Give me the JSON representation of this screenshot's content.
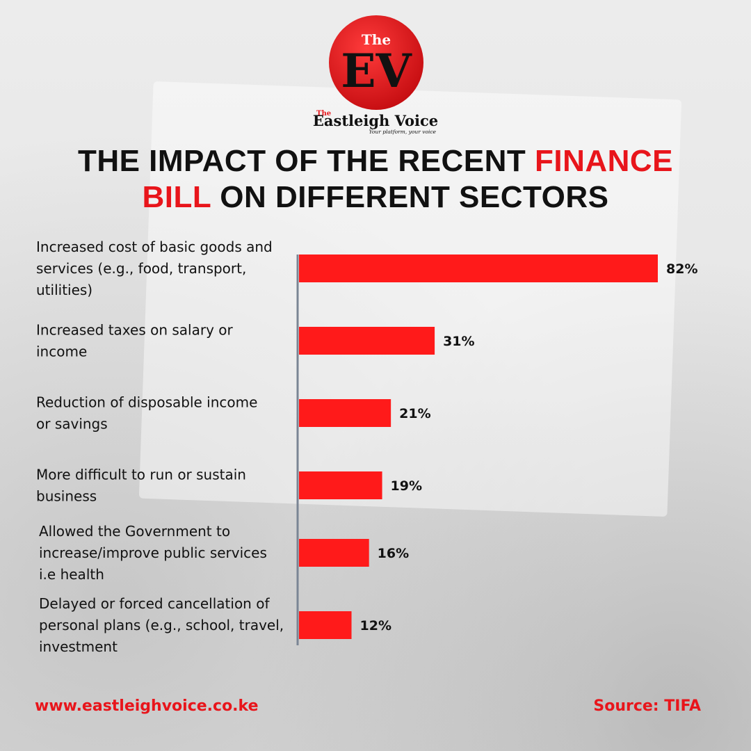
{
  "brand": {
    "logo_the": "The",
    "logo_mark": "EV",
    "wordmark_the": "The",
    "wordmark": "Eastleigh Voice",
    "tagline": "Your platform, your voice",
    "colors": {
      "red": "#e8151b",
      "dark": "#111111"
    }
  },
  "title": {
    "part1": "THE IMPACT OF THE RECENT ",
    "highlight1": "FINANCE",
    "highlight2": "BILL",
    "part2": " ON DIFFERENT SECTORS"
  },
  "chart_data": {
    "type": "bar",
    "orientation": "horizontal",
    "categories": [
      [
        "Increased cost of basic goods and",
        "services (e.g., food, transport,",
        "utilities)"
      ],
      [
        "Increased taxes on salary or",
        "income"
      ],
      [
        "Reduction of disposable income",
        "or savings"
      ],
      [
        "More difficult to run or sustain",
        "business"
      ],
      [
        "Allowed the Government to",
        "increase/improve public services",
        "i.e health"
      ],
      [
        "Delayed or forced cancellation of",
        "personal plans (e.g., school, travel,",
        "investment"
      ]
    ],
    "values": [
      82,
      31,
      21,
      19,
      16,
      12
    ],
    "value_labels": [
      "82%",
      "31%",
      "21%",
      "19%",
      "16%",
      "12%"
    ],
    "bar_color": "#ff1a1a",
    "xlim": [
      0,
      82
    ],
    "grid": false
  },
  "footer": {
    "url": "www.eastleighvoice.co.ke",
    "source": "Source: TIFA"
  }
}
